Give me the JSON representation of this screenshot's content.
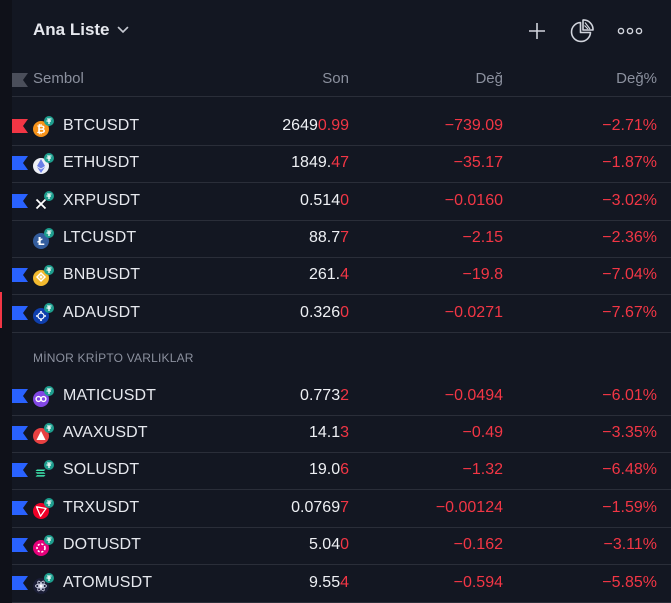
{
  "header": {
    "title": "Ana Liste"
  },
  "columns": {
    "symbol": "Sembol",
    "last": "Son",
    "change": "Değ",
    "change_pct": "Değ%"
  },
  "section_label": "MİNOR KRİPTO VARLIKLAR",
  "colors": {
    "flag_blue": "#2962ff",
    "flag_red": "#f23645",
    "negative": "#f23645",
    "teal_badge": "#26a69a"
  },
  "rows": [
    {
      "symbol": "BTCUSDT",
      "last_main": "2649",
      "last_tail": "0.99",
      "change": "−739.09",
      "change_pct": "−2.71%",
      "flag": "red",
      "icon": "bitcoin-icon"
    },
    {
      "symbol": "ETHUSDT",
      "last_main": "1849.",
      "last_tail": "47",
      "change": "−35.17",
      "change_pct": "−1.87%",
      "flag": "blue",
      "icon": "ethereum-icon"
    },
    {
      "symbol": "XRPUSDT",
      "last_main": "0.514",
      "last_tail": "0",
      "change": "−0.0160",
      "change_pct": "−3.02%",
      "flag": "blue",
      "icon": "xrp-icon"
    },
    {
      "symbol": "LTCUSDT",
      "last_main": "88.7",
      "last_tail": "7",
      "change": "−2.15",
      "change_pct": "−2.36%",
      "flag": "none",
      "icon": "litecoin-icon"
    },
    {
      "symbol": "BNBUSDT",
      "last_main": "261.",
      "last_tail": "4",
      "change": "−19.8",
      "change_pct": "−7.04%",
      "flag": "blue",
      "icon": "bnb-icon"
    },
    {
      "symbol": "ADAUSDT",
      "last_main": "0.326",
      "last_tail": "0",
      "change": "−0.0271",
      "change_pct": "−7.67%",
      "flag": "blue",
      "icon": "cardano-icon"
    },
    {
      "symbol": "MATICUSDT",
      "last_main": "0.773",
      "last_tail": "2",
      "change": "−0.0494",
      "change_pct": "−6.01%",
      "flag": "blue",
      "icon": "polygon-icon"
    },
    {
      "symbol": "AVAXUSDT",
      "last_main": "14.1",
      "last_tail": "3",
      "change": "−0.49",
      "change_pct": "−3.35%",
      "flag": "blue",
      "icon": "avalanche-icon"
    },
    {
      "symbol": "SOLUSDT",
      "last_main": "19.0",
      "last_tail": "6",
      "change": "−1.32",
      "change_pct": "−6.48%",
      "flag": "blue",
      "icon": "solana-icon"
    },
    {
      "symbol": "TRXUSDT",
      "last_main": "0.0769",
      "last_tail": "7",
      "change": "−0.00124",
      "change_pct": "−1.59%",
      "flag": "blue",
      "icon": "tron-icon"
    },
    {
      "symbol": "DOTUSDT",
      "last_main": "5.04",
      "last_tail": "0",
      "change": "−0.162",
      "change_pct": "−3.11%",
      "flag": "blue",
      "icon": "polkadot-icon"
    },
    {
      "symbol": "ATOMUSDT",
      "last_main": "9.55",
      "last_tail": "4",
      "change": "−0.594",
      "change_pct": "−5.85%",
      "flag": "blue",
      "icon": "cosmos-icon"
    }
  ]
}
